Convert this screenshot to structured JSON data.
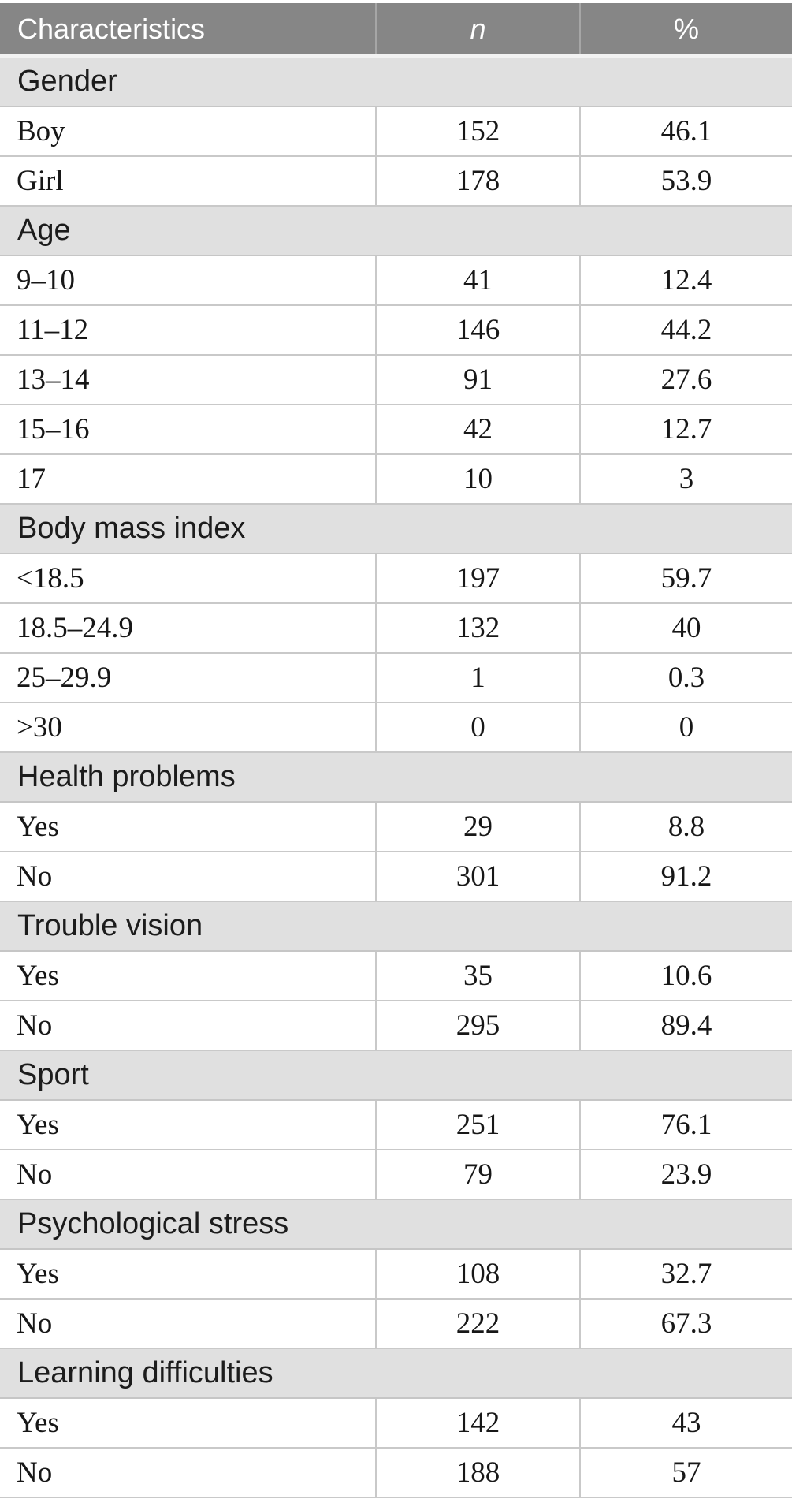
{
  "table": {
    "header": {
      "characteristics": "Characteristics",
      "n": "n",
      "percent": "%"
    },
    "sections": [
      {
        "label": "Gender",
        "rows": [
          {
            "label": "Boy",
            "n": "152",
            "percent": "46.1"
          },
          {
            "label": "Girl",
            "n": "178",
            "percent": "53.9"
          }
        ]
      },
      {
        "label": "Age",
        "rows": [
          {
            "label": "9–10",
            "n": "41",
            "percent": "12.4"
          },
          {
            "label": "11–12",
            "n": "146",
            "percent": "44.2"
          },
          {
            "label": "13–14",
            "n": "91",
            "percent": "27.6"
          },
          {
            "label": "15–16",
            "n": "42",
            "percent": "12.7"
          },
          {
            "label": "17",
            "n": "10",
            "percent": "3"
          }
        ]
      },
      {
        "label": "Body mass index",
        "rows": [
          {
            "label": "<18.5",
            "n": "197",
            "percent": "59.7"
          },
          {
            "label": "18.5–24.9",
            "n": "132",
            "percent": "40"
          },
          {
            "label": "25–29.9",
            "n": "1",
            "percent": "0.3"
          },
          {
            "label": ">30",
            "n": "0",
            "percent": "0"
          }
        ]
      },
      {
        "label": "Health problems",
        "rows": [
          {
            "label": "Yes",
            "n": "29",
            "percent": "8.8"
          },
          {
            "label": "No",
            "n": "301",
            "percent": "91.2"
          }
        ]
      },
      {
        "label": "Trouble vision",
        "rows": [
          {
            "label": "Yes",
            "n": "35",
            "percent": "10.6"
          },
          {
            "label": "No",
            "n": "295",
            "percent": "89.4"
          }
        ]
      },
      {
        "label": "Sport",
        "rows": [
          {
            "label": "Yes",
            "n": "251",
            "percent": "76.1"
          },
          {
            "label": "No",
            "n": "79",
            "percent": "23.9"
          }
        ]
      },
      {
        "label": "Psychological stress",
        "rows": [
          {
            "label": "Yes",
            "n": "108",
            "percent": "32.7"
          },
          {
            "label": "No",
            "n": "222",
            "percent": "67.3"
          }
        ]
      },
      {
        "label": "Learning difficulties",
        "rows": [
          {
            "label": "Yes",
            "n": "142",
            "percent": "43"
          },
          {
            "label": "No",
            "n": "188",
            "percent": "57"
          }
        ]
      }
    ]
  },
  "colors": {
    "header_bg": "#868686",
    "header_text": "#ffffff",
    "header_divider": "#a6a6a6",
    "section_bg": "#e0e0e0",
    "row_bg": "#ffffff",
    "border": "#c9c9c9",
    "text": "#171717"
  }
}
